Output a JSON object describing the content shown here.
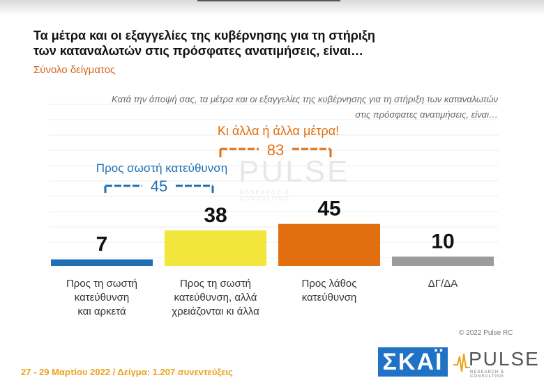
{
  "header": {
    "title_line1": "Τα μέτρα και οι εξαγγελίες της κυβέρνησης για τη στήριξη",
    "title_line2": "των καταναλωτών στις πρόσφατες ανατιμήσεις, είναι…",
    "subtitle": "Σύνολο δείγματος",
    "question_line1": "Κατά την άποψή σας, τα μέτρα και οι εξαγγελίες της κυβέρνησης για τη στήριξη των καταναλωτών",
    "question_line2": "στις πρόσφατες ανατιμήσεις, είναι…"
  },
  "chart_data": {
    "type": "bar",
    "categories": [
      [
        "Προς τη σωστή",
        "κατεύθυνση",
        "και αρκετά"
      ],
      [
        "Προς τη σωστή",
        "κατεύθυνση, αλλά",
        "χρειάζονται κι άλλα"
      ],
      [
        "Προς λάθος",
        "κατεύθυνση"
      ],
      [
        "ΔΓ/ΔΑ"
      ]
    ],
    "values": [
      7,
      38,
      45,
      10
    ],
    "colors": [
      "#1f6fb2",
      "#f2e53b",
      "#e26f0f",
      "#9b9b9b"
    ],
    "ylim": [
      0,
      100
    ],
    "grid": true,
    "groups": [
      {
        "label": "Προς σωστή κατεύθυνση",
        "value": 45,
        "spans": [
          0,
          1
        ],
        "color": "#1f6fb2"
      },
      {
        "label": "Κι άλλα ή άλλα μέτρα!",
        "value": 83,
        "spans": [
          1,
          2
        ],
        "color": "#e26f0f"
      }
    ]
  },
  "footer": {
    "date_sample": "27 - 29 Μαρτίου  2022  /  Δείγμα:  1.207 συνεντεύξεις",
    "copyright": "© 2022 Pulse RC"
  },
  "logos": {
    "skai": "ΣΚΑΪ",
    "pulse": "PULSE",
    "pulse_sub": "RESEARCH & CONSULTING"
  }
}
